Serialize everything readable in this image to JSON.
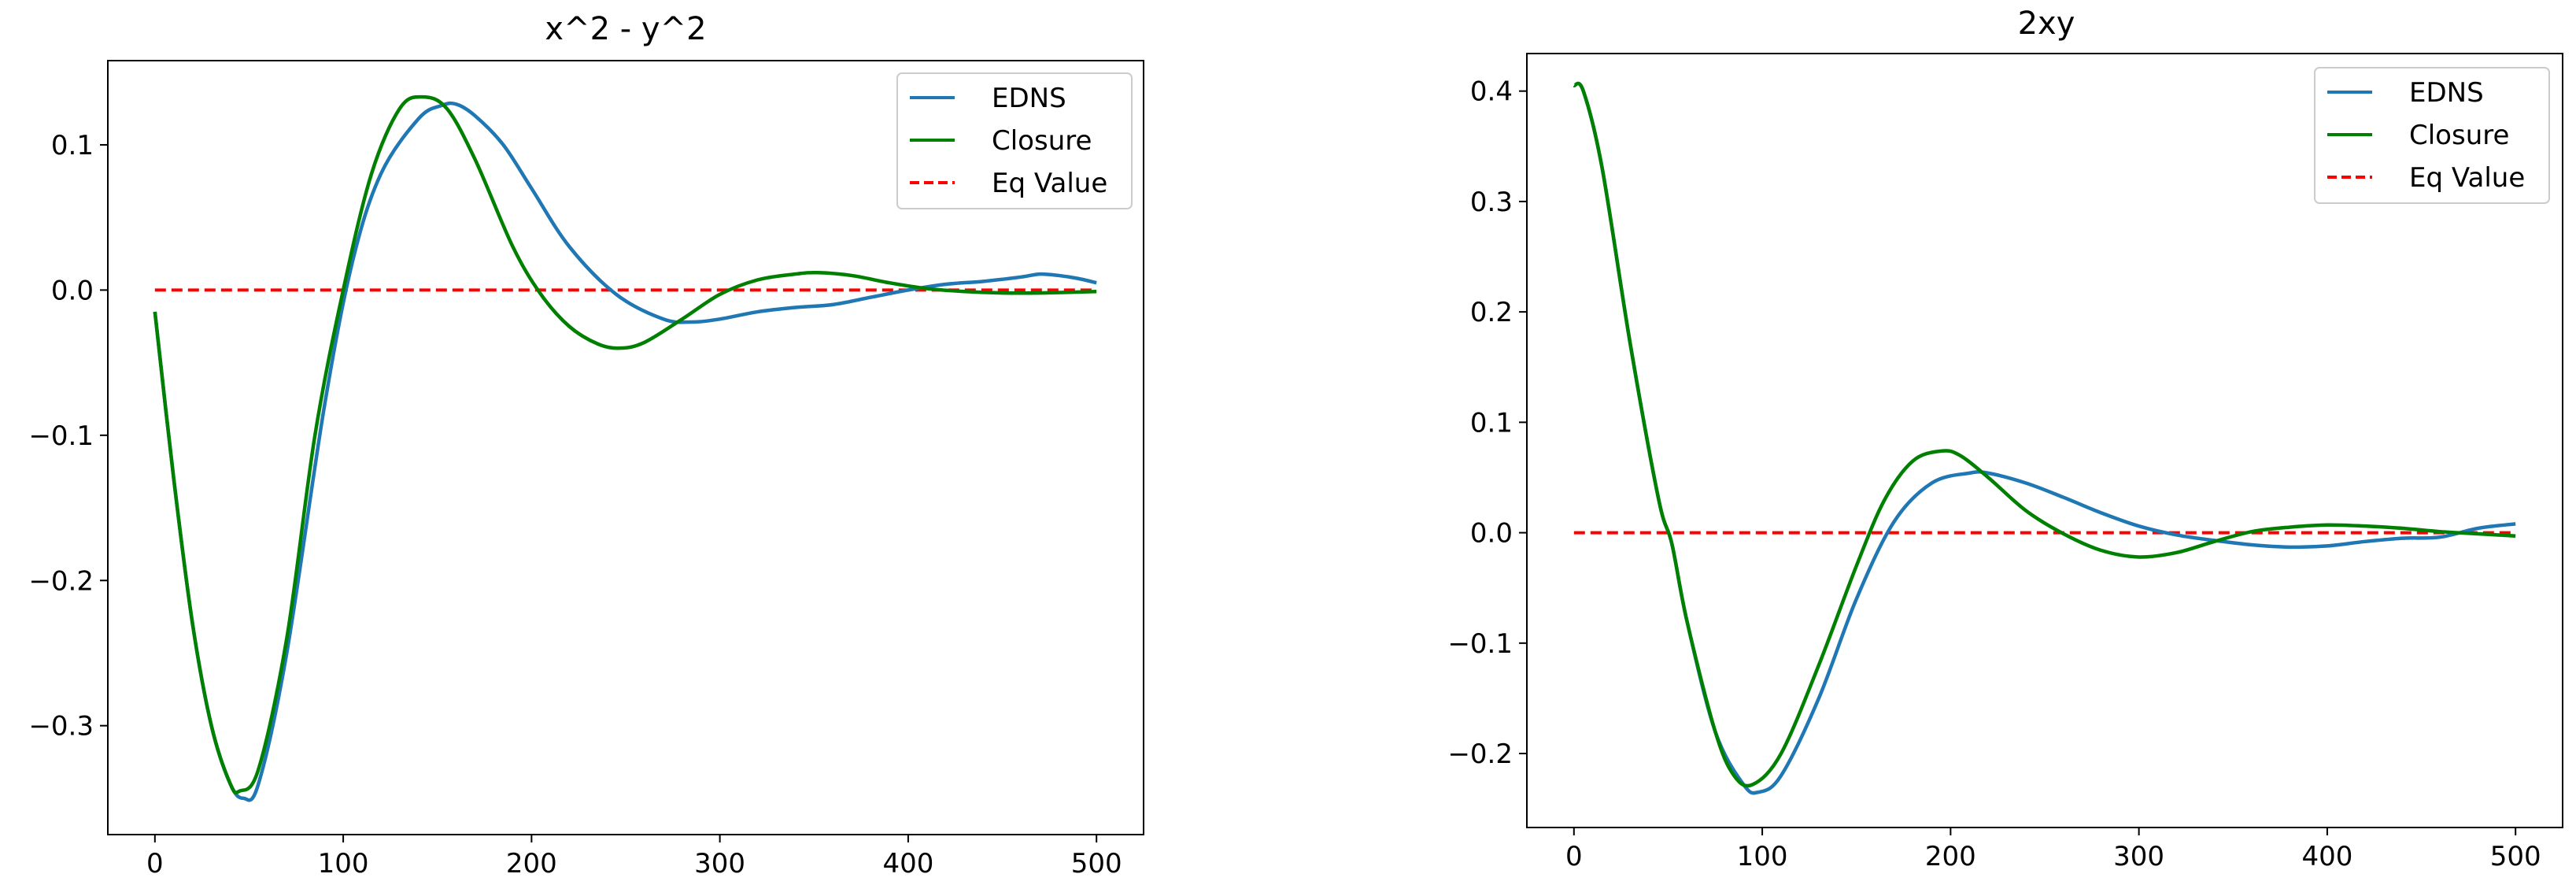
{
  "chart_data": [
    {
      "type": "line",
      "title": "x^2 - y^2",
      "xlabel": "",
      "ylabel": "",
      "xlim": [
        -25,
        525
      ],
      "ylim": [
        -0.375,
        0.158
      ],
      "xticks": [
        0,
        100,
        200,
        300,
        400,
        500
      ],
      "xtick_labels": [
        "0",
        "100",
        "200",
        "300",
        "400",
        "500"
      ],
      "yticks": [
        -0.3,
        -0.2,
        -0.1,
        0.0,
        0.1
      ],
      "ytick_labels": [
        "−0.3",
        "−0.2",
        "−0.1",
        "0.0",
        "0.1"
      ],
      "legend_position": "top-right",
      "series": [
        {
          "name": "EDNS",
          "color": "#1f77b4",
          "style": "solid",
          "x": [
            0,
            10,
            20,
            30,
            40,
            47,
            55,
            70,
            90,
            105,
            120,
            140,
            152,
            160,
            170,
            185,
            200,
            220,
            245,
            270,
            285,
            300,
            320,
            340,
            360,
            380,
            400,
            420,
            440,
            460,
            470,
            480,
            490,
            500
          ],
          "y": [
            -0.015,
            -0.13,
            -0.23,
            -0.3,
            -0.34,
            -0.35,
            -0.34,
            -0.25,
            -0.08,
            0.02,
            0.08,
            0.118,
            0.127,
            0.128,
            0.12,
            0.1,
            0.07,
            0.03,
            -0.003,
            -0.02,
            -0.022,
            -0.02,
            -0.015,
            -0.012,
            -0.01,
            -0.005,
            0.0,
            0.004,
            0.006,
            0.009,
            0.011,
            0.01,
            0.008,
            0.005
          ]
        },
        {
          "name": "Closure",
          "color": "#008000",
          "style": "solid",
          "x": [
            0,
            10,
            20,
            30,
            40,
            45,
            55,
            70,
            85,
            100,
            115,
            130,
            142,
            155,
            170,
            190,
            205,
            220,
            235,
            247,
            260,
            280,
            300,
            320,
            340,
            352,
            370,
            390,
            410,
            430,
            450,
            470,
            500
          ],
          "y": [
            -0.015,
            -0.13,
            -0.23,
            -0.3,
            -0.34,
            -0.345,
            -0.33,
            -0.24,
            -0.1,
            0.0,
            0.08,
            0.125,
            0.133,
            0.125,
            0.09,
            0.03,
            -0.003,
            -0.025,
            -0.037,
            -0.04,
            -0.036,
            -0.02,
            -0.003,
            0.007,
            0.011,
            0.012,
            0.01,
            0.005,
            0.001,
            -0.001,
            -0.002,
            -0.002,
            -0.001
          ]
        },
        {
          "name": "Eq Value",
          "color": "#ff0000",
          "style": "dashed",
          "x": [
            0,
            500
          ],
          "y": [
            0.0,
            0.0
          ]
        }
      ]
    },
    {
      "type": "line",
      "title": "2xy",
      "xlabel": "",
      "ylabel": "",
      "xlim": [
        -25,
        525
      ],
      "ylim": [
        -0.267,
        0.434
      ],
      "xticks": [
        0,
        100,
        200,
        300,
        400,
        500
      ],
      "xtick_labels": [
        "0",
        "100",
        "200",
        "300",
        "400",
        "500"
      ],
      "yticks": [
        -0.2,
        -0.1,
        0.0,
        0.1,
        0.2,
        0.3,
        0.4
      ],
      "ytick_labels": [
        "−0.2",
        "−0.1",
        "0.0",
        "0.1",
        "0.2",
        "0.3",
        "0.4"
      ],
      "legend_position": "top-right",
      "series": [
        {
          "name": "EDNS",
          "color": "#1f77b4",
          "style": "solid",
          "x": [
            0,
            5,
            15,
            30,
            45,
            52,
            60,
            75,
            90,
            98,
            110,
            130,
            150,
            170,
            190,
            210,
            220,
            240,
            260,
            280,
            300,
            320,
            340,
            360,
            380,
            400,
            420,
            440,
            460,
            480,
            500
          ],
          "y": [
            0.405,
            0.4,
            0.33,
            0.17,
            0.03,
            -0.01,
            -0.08,
            -0.18,
            -0.228,
            -0.235,
            -0.22,
            -0.15,
            -0.06,
            0.01,
            0.045,
            0.054,
            0.054,
            0.045,
            0.032,
            0.018,
            0.006,
            -0.002,
            -0.007,
            -0.011,
            -0.013,
            -0.012,
            -0.008,
            -0.005,
            -0.004,
            0.004,
            0.008
          ]
        },
        {
          "name": "Closure",
          "color": "#008000",
          "style": "solid",
          "x": [
            0,
            5,
            15,
            30,
            45,
            52,
            60,
            75,
            85,
            95,
            110,
            130,
            150,
            165,
            180,
            195,
            205,
            220,
            240,
            260,
            280,
            300,
            320,
            340,
            360,
            380,
            400,
            420,
            440,
            460,
            480,
            500
          ],
          "y": [
            0.405,
            0.4,
            0.33,
            0.17,
            0.03,
            -0.01,
            -0.08,
            -0.18,
            -0.22,
            -0.228,
            -0.2,
            -0.12,
            -0.03,
            0.03,
            0.065,
            0.074,
            0.07,
            0.05,
            0.02,
            -0.001,
            -0.016,
            -0.022,
            -0.018,
            -0.008,
            0.001,
            0.005,
            0.007,
            0.006,
            0.004,
            0.001,
            -0.001,
            -0.003
          ]
        },
        {
          "name": "Eq Value",
          "color": "#ff0000",
          "style": "dashed",
          "x": [
            0,
            500
          ],
          "y": [
            0.0,
            0.0
          ]
        }
      ]
    }
  ]
}
